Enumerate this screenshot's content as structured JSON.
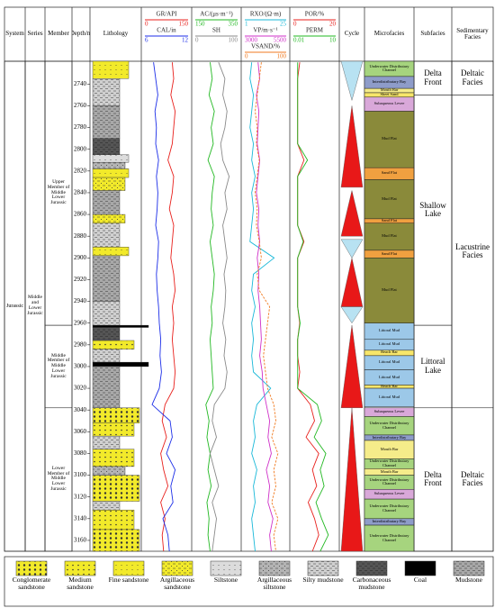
{
  "header": {
    "system": "System",
    "series": "Series",
    "member": "Member",
    "depth": "Depth/m",
    "lithology": "Lithology",
    "cycle": "Cycle",
    "microfacies": "Microfacies",
    "subfacies": "Subfacies",
    "facies": "Sedimentary Facies"
  },
  "depth": {
    "lim": [
      2719,
      3170
    ],
    "ticks": [
      2740,
      2760,
      2780,
      2800,
      2820,
      2840,
      2860,
      2880,
      2900,
      2920,
      2940,
      2960,
      2980,
      3000,
      3020,
      3040,
      3060,
      3080,
      3100,
      3120,
      3140,
      3160
    ]
  },
  "systems": [
    {
      "label": "Jurassic",
      "top": 2719,
      "bottom": 3170
    }
  ],
  "series": [
    {
      "label": "Middle and Lower Jurassic",
      "top": 2719,
      "bottom": 3170
    }
  ],
  "members": [
    {
      "label": "Upper Member of Middle Lower Jurassic",
      "top": 2719,
      "bottom": 2962
    },
    {
      "label": "Middle Member of Middle Lower Jurassic",
      "top": 2962,
      "bottom": 3038
    },
    {
      "label": "Lower Member of Middle Lower Jurassic",
      "top": 3038,
      "bottom": 3170
    }
  ],
  "curve_depths": [
    2720,
    2735,
    2750,
    2765,
    2780,
    2795,
    2810,
    2825,
    2840,
    2855,
    2870,
    2885,
    2900,
    2915,
    2930,
    2945,
    2960,
    2975,
    2990,
    3005,
    3020,
    3035,
    3050,
    3065,
    3080,
    3095,
    3110,
    3125,
    3140,
    3155,
    3170
  ],
  "tracks": [
    {
      "curves": [
        {
          "name": "GR/API",
          "color": "#e8201c",
          "lim": [
            0,
            150
          ],
          "values": [
            95,
            100,
            90,
            105,
            100,
            95,
            80,
            100,
            95,
            85,
            100,
            95,
            90,
            100,
            105,
            95,
            100,
            95,
            100,
            105,
            100,
            70,
            60,
            75,
            55,
            65,
            80,
            55,
            70,
            60,
            65
          ]
        },
        {
          "name": "CAL/in",
          "color": "#1c2ee8",
          "lim": [
            6,
            12
          ],
          "values": [
            7.2,
            7.5,
            7.8,
            7.4,
            7.6,
            7.5,
            7.9,
            7.6,
            7.8,
            7.7,
            7.5,
            7.9,
            7.8,
            7.6,
            7.7,
            7.9,
            8.0,
            8.2,
            8.1,
            8.3,
            8.0,
            7.0,
            9.5,
            9.8,
            9.0,
            10.2,
            9.6,
            9.9,
            8.5,
            9.2,
            9.4
          ]
        }
      ]
    },
    {
      "curves": [
        {
          "name": "AC/(μs·m⁻¹)",
          "color": "#22b822",
          "lim": [
            150,
            350
          ],
          "values": [
            220,
            230,
            215,
            240,
            225,
            235,
            210,
            240,
            230,
            225,
            235,
            220,
            230,
            240,
            235,
            225,
            230,
            220,
            225,
            230,
            235,
            200,
            215,
            205,
            220,
            210,
            225,
            205,
            215,
            210,
            220
          ]
        },
        {
          "name": "SH",
          "color": "#8a8a8a",
          "lim": [
            0,
            100
          ],
          "values": [
            55,
            70,
            65,
            75,
            70,
            60,
            65,
            80,
            70,
            75,
            65,
            70,
            75,
            68,
            72,
            70,
            65,
            72,
            68,
            75,
            70,
            45,
            40,
            50,
            35,
            45,
            55,
            40,
            50,
            45,
            40
          ]
        }
      ]
    },
    {
      "curves": [
        {
          "name": "RXO/(Ω·m)",
          "color": "#18b8d8",
          "lim": [
            1,
            25
          ],
          "values": [
            5,
            4,
            6,
            5,
            4,
            6,
            5,
            7,
            5,
            6,
            5,
            4,
            18,
            6,
            5,
            7,
            5,
            6,
            5,
            6,
            16,
            8,
            6,
            7,
            5,
            8,
            6,
            7,
            5,
            6,
            7
          ]
        },
        {
          "name": "VP/m·s⁻¹",
          "color": "#d030c8",
          "lim": [
            3000,
            5500
          ],
          "values": [
            3800,
            3900,
            3700,
            3850,
            3800,
            3750,
            3900,
            3800,
            3700,
            3850,
            3800,
            3900,
            3750,
            3850,
            3800,
            3900,
            3950,
            4000,
            3900,
            4050,
            4100,
            4300,
            4500,
            4400,
            4600,
            4300,
            4500,
            4400,
            4700,
            4500,
            4600
          ]
        },
        {
          "name": "VSAND/%",
          "color": "#f07a20",
          "lim": [
            0,
            100
          ],
          "dash": true,
          "values": [
            40,
            35,
            30,
            25,
            30,
            28,
            35,
            30,
            25,
            30,
            28,
            35,
            40,
            30,
            35,
            60,
            55,
            50,
            45,
            50,
            55,
            70,
            75,
            65,
            80,
            70,
            75,
            65,
            80,
            70,
            75
          ]
        }
      ]
    },
    {
      "curves": [
        {
          "name": "POR/%",
          "color": "#e8201c",
          "lim": [
            0,
            20
          ],
          "values": [
            3,
            2,
            2,
            2,
            2,
            2,
            5,
            2,
            2,
            2,
            2,
            5,
            2,
            2,
            2,
            2,
            3,
            2,
            2,
            3,
            2,
            8,
            10,
            6,
            12,
            9,
            11,
            7,
            10,
            12,
            9
          ]
        },
        {
          "name": "PERM",
          "color": "#22b822",
          "lim": [
            0.01,
            10
          ],
          "log": true,
          "values": [
            0.02,
            0.02,
            0.02,
            0.02,
            0.02,
            0.02,
            0.1,
            0.02,
            0.02,
            0.02,
            0.02,
            0.05,
            0.02,
            0.02,
            0.02,
            0.02,
            0.03,
            0.02,
            0.02,
            0.02,
            0.02,
            0.5,
            1,
            0.3,
            2,
            0.8,
            1.5,
            0.4,
            1,
            3,
            0.8
          ]
        }
      ]
    }
  ],
  "cycles": [
    {
      "top": 2719,
      "bottom": 2755,
      "apex": "bottom",
      "color": "#b8e2f2"
    },
    {
      "top": 2760,
      "bottom": 2835,
      "apex": "top",
      "color": "#e81818"
    },
    {
      "top": 2838,
      "bottom": 2880,
      "apex": "top",
      "color": "#e81818"
    },
    {
      "top": 2883,
      "bottom": 2900,
      "apex": "bottom",
      "color": "#b8e2f2"
    },
    {
      "top": 2900,
      "bottom": 2945,
      "apex": "top",
      "color": "#e81818"
    },
    {
      "top": 2945,
      "bottom": 2960,
      "apex": "bottom",
      "color": "#b8e2f2"
    },
    {
      "top": 2962,
      "bottom": 3038,
      "apex": "top",
      "color": "#e81818"
    },
    {
      "top": 3038,
      "bottom": 3170,
      "apex": "top",
      "color": "#e81818"
    }
  ],
  "microfacies": [
    {
      "label": "Underwater Distributary Channel",
      "top": 2719,
      "bottom": 2733,
      "color": "#a6d47e"
    },
    {
      "label": "Interdistributary Bay",
      "top": 2733,
      "bottom": 2744,
      "color": "#8e9cc9"
    },
    {
      "label": "Mouth Bar",
      "top": 2744,
      "bottom": 2748,
      "color": "#f5ec8a"
    },
    {
      "label": "Sheet Sand",
      "top": 2748,
      "bottom": 2752,
      "color": "#f7e66a"
    },
    {
      "label": "Subaqueous Levee",
      "top": 2752,
      "bottom": 2765,
      "color": "#d9a8d9"
    },
    {
      "label": "Mud Flat",
      "top": 2765,
      "bottom": 2817,
      "color": "#8a8a3a"
    },
    {
      "label": "Sand Flat",
      "top": 2817,
      "bottom": 2828,
      "color": "#f0a040"
    },
    {
      "label": "Mud Flat",
      "top": 2828,
      "bottom": 2864,
      "color": "#8a8a3a"
    },
    {
      "label": "Sand Flat",
      "top": 2864,
      "bottom": 2868,
      "color": "#f0a040"
    },
    {
      "label": "Mud Flat",
      "top": 2868,
      "bottom": 2893,
      "color": "#8a8a3a"
    },
    {
      "label": "Sand Flat",
      "top": 2893,
      "bottom": 2900,
      "color": "#f0a040"
    },
    {
      "label": "Mud Flat",
      "top": 2900,
      "bottom": 2960,
      "color": "#8a8a3a"
    },
    {
      "label": "Littoral Mud",
      "top": 2960,
      "bottom": 2975,
      "color": "#9cc8e8"
    },
    {
      "label": "Littoral Mud",
      "top": 2975,
      "bottom": 2985,
      "color": "#9cc8e8"
    },
    {
      "label": "Beach Bar",
      "top": 2985,
      "bottom": 2990,
      "color": "#f7e66a"
    },
    {
      "label": "Littoral Mud",
      "top": 2990,
      "bottom": 3003,
      "color": "#9cc8e8"
    },
    {
      "label": "Littoral Mud",
      "top": 3003,
      "bottom": 3017,
      "color": "#9cc8e8"
    },
    {
      "label": "Beach Bar",
      "top": 3017,
      "bottom": 3020,
      "color": "#f7e66a"
    },
    {
      "label": "Littoral Mud",
      "top": 3020,
      "bottom": 3037,
      "color": "#9cc8e8"
    },
    {
      "label": "Subaqueous Levee",
      "top": 3038,
      "bottom": 3046,
      "color": "#d9a8d9"
    },
    {
      "label": "Underwater Distributary Channel",
      "top": 3046,
      "bottom": 3063,
      "color": "#a6d47e"
    },
    {
      "label": "Interdistributary Bay",
      "top": 3063,
      "bottom": 3068,
      "color": "#8e9cc9"
    },
    {
      "label": "Mouth Bar",
      "top": 3068,
      "bottom": 3085,
      "color": "#f5ec8a"
    },
    {
      "label": "Underwater Distributary Channel",
      "top": 3085,
      "bottom": 3094,
      "color": "#a6d47e"
    },
    {
      "label": "Mouth Bar",
      "top": 3094,
      "bottom": 3100,
      "color": "#f5ec8a"
    },
    {
      "label": "Underwater Distributary Channel",
      "top": 3100,
      "bottom": 3113,
      "color": "#a6d47e"
    },
    {
      "label": "Subaqueous Levee",
      "top": 3113,
      "bottom": 3122,
      "color": "#d9a8d9"
    },
    {
      "label": "Underwater Distributary Channel",
      "top": 3122,
      "bottom": 3140,
      "color": "#a6d47e"
    },
    {
      "label": "Interdistributary Bay",
      "top": 3140,
      "bottom": 3146,
      "color": "#8e9cc9"
    },
    {
      "label": "Underwater Distributary Channel",
      "top": 3146,
      "bottom": 3170,
      "color": "#a6d47e"
    }
  ],
  "subfacies": [
    {
      "label": "Delta Front",
      "top": 2719,
      "bottom": 2750
    },
    {
      "label": "Shallow Lake",
      "top": 2750,
      "bottom": 2962
    },
    {
      "label": "Littoral Lake",
      "top": 2962,
      "bottom": 3038
    },
    {
      "label": "Delta Front",
      "top": 3038,
      "bottom": 3170
    }
  ],
  "facies": [
    {
      "label": "Deltaic Facies",
      "top": 2719,
      "bottom": 2750
    },
    {
      "label": "Lacustrine Facies",
      "top": 2750,
      "bottom": 3038
    },
    {
      "label": "Deltaic Facies",
      "top": 3038,
      "bottom": 3170
    }
  ],
  "legend": [
    {
      "label": "Conglomerate sandstone",
      "color": "#f2ea2a",
      "pattern": "big-dots",
      "intervals": [
        [
          3038,
          3052
        ],
        [
          3100,
          3124
        ],
        [
          3150,
          3170
        ]
      ]
    },
    {
      "label": "Medium sandstone",
      "color": "#f2ea2a",
      "pattern": "dots",
      "intervals": [
        [
          2976,
          2984
        ],
        [
          3052,
          3064
        ],
        [
          3076,
          3092
        ],
        [
          3132,
          3150
        ]
      ]
    },
    {
      "label": "Fine sandstone",
      "color": "#f2ea2a",
      "pattern": "fine-dots",
      "intervals": [
        [
          2719,
          2735
        ],
        [
          2818,
          2826
        ],
        [
          2890,
          2898
        ]
      ]
    },
    {
      "label": "Argillaceous sandstone",
      "color": "#f2ea2a",
      "pattern": "dash-dots",
      "intervals": [
        [
          2826,
          2838
        ],
        [
          2860,
          2868
        ]
      ]
    },
    {
      "label": "Siltstone",
      "color": "#dcdcdc",
      "pattern": "fine-dots",
      "intervals": [
        [
          2805,
          2812
        ]
      ]
    },
    {
      "label": "Argillaceous siltstone",
      "color": "#b4b4b4",
      "pattern": "dash-dots",
      "intervals": [
        [
          2812,
          2818
        ],
        [
          3092,
          3100
        ]
      ]
    },
    {
      "label": "Silty mudstone",
      "color": "#d0d0d0",
      "pattern": "dashes",
      "intervals": [
        [
          2735,
          2760
        ],
        [
          2868,
          2890
        ],
        [
          2940,
          2962
        ],
        [
          2984,
          2996
        ],
        [
          3064,
          3076
        ],
        [
          3124,
          3132
        ]
      ]
    },
    {
      "label": "Carbonaceous mudstone",
      "color": "#555555",
      "pattern": "dashes",
      "intervals": [
        [
          2790,
          2805
        ],
        [
          2964,
          2976
        ]
      ]
    },
    {
      "label": "Coal",
      "color": "#000000",
      "pattern": "solid",
      "intervals": [
        [
          2962,
          2964
        ],
        [
          2996,
          3000
        ]
      ]
    },
    {
      "label": "Mudstone",
      "color": "#a8a8a8",
      "pattern": "dashes",
      "intervals": [
        [
          2760,
          2790
        ],
        [
          2838,
          2860
        ],
        [
          2898,
          2940
        ],
        [
          3000,
          3038
        ]
      ]
    }
  ]
}
